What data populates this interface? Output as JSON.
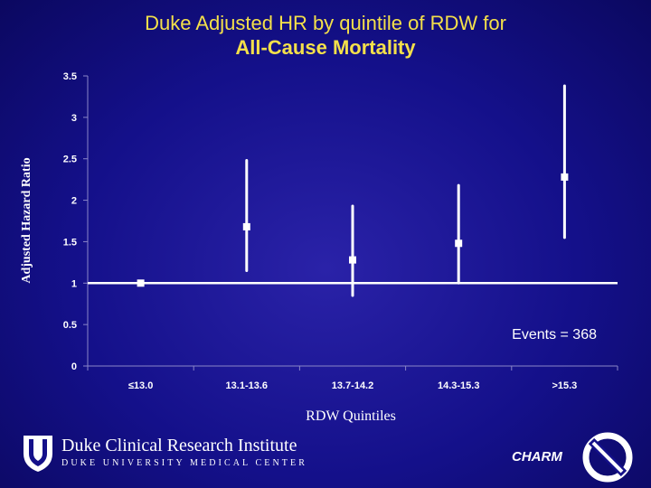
{
  "chart_data": {
    "type": "scatter",
    "title": "Duke Adjusted HR by quintile of RDW for",
    "subtitle": "All-Cause Mortality",
    "ylabel": "Adjusted Hazard Ratio",
    "xlabel": "RDW Quintiles",
    "annotation": "Events = 368",
    "categories": [
      "≤13.0",
      "13.1-13.6",
      "13.7-14.2",
      "14.3-15.3",
      ">15.3"
    ],
    "values": [
      1.0,
      1.68,
      1.28,
      1.48,
      2.28
    ],
    "ci_lower": [
      1.0,
      1.15,
      0.85,
      1.0,
      1.55
    ],
    "ci_upper": [
      1.0,
      2.48,
      1.93,
      2.18,
      3.38
    ],
    "yticks": [
      "0",
      "0.5",
      "1",
      "1.5",
      "2",
      "2.5",
      "3",
      "3.5"
    ],
    "ylim": [
      0,
      3.5
    ],
    "reference_line": 1,
    "grid": false
  },
  "footer": {
    "org_name": "Duke Clinical Research Institute",
    "org_sub": "DUKE UNIVERSITY MEDICAL CENTER",
    "brand": "CHARM",
    "colors": {
      "background": "#14108a",
      "title": "#f4e04a",
      "marks": "#ffffff"
    }
  }
}
